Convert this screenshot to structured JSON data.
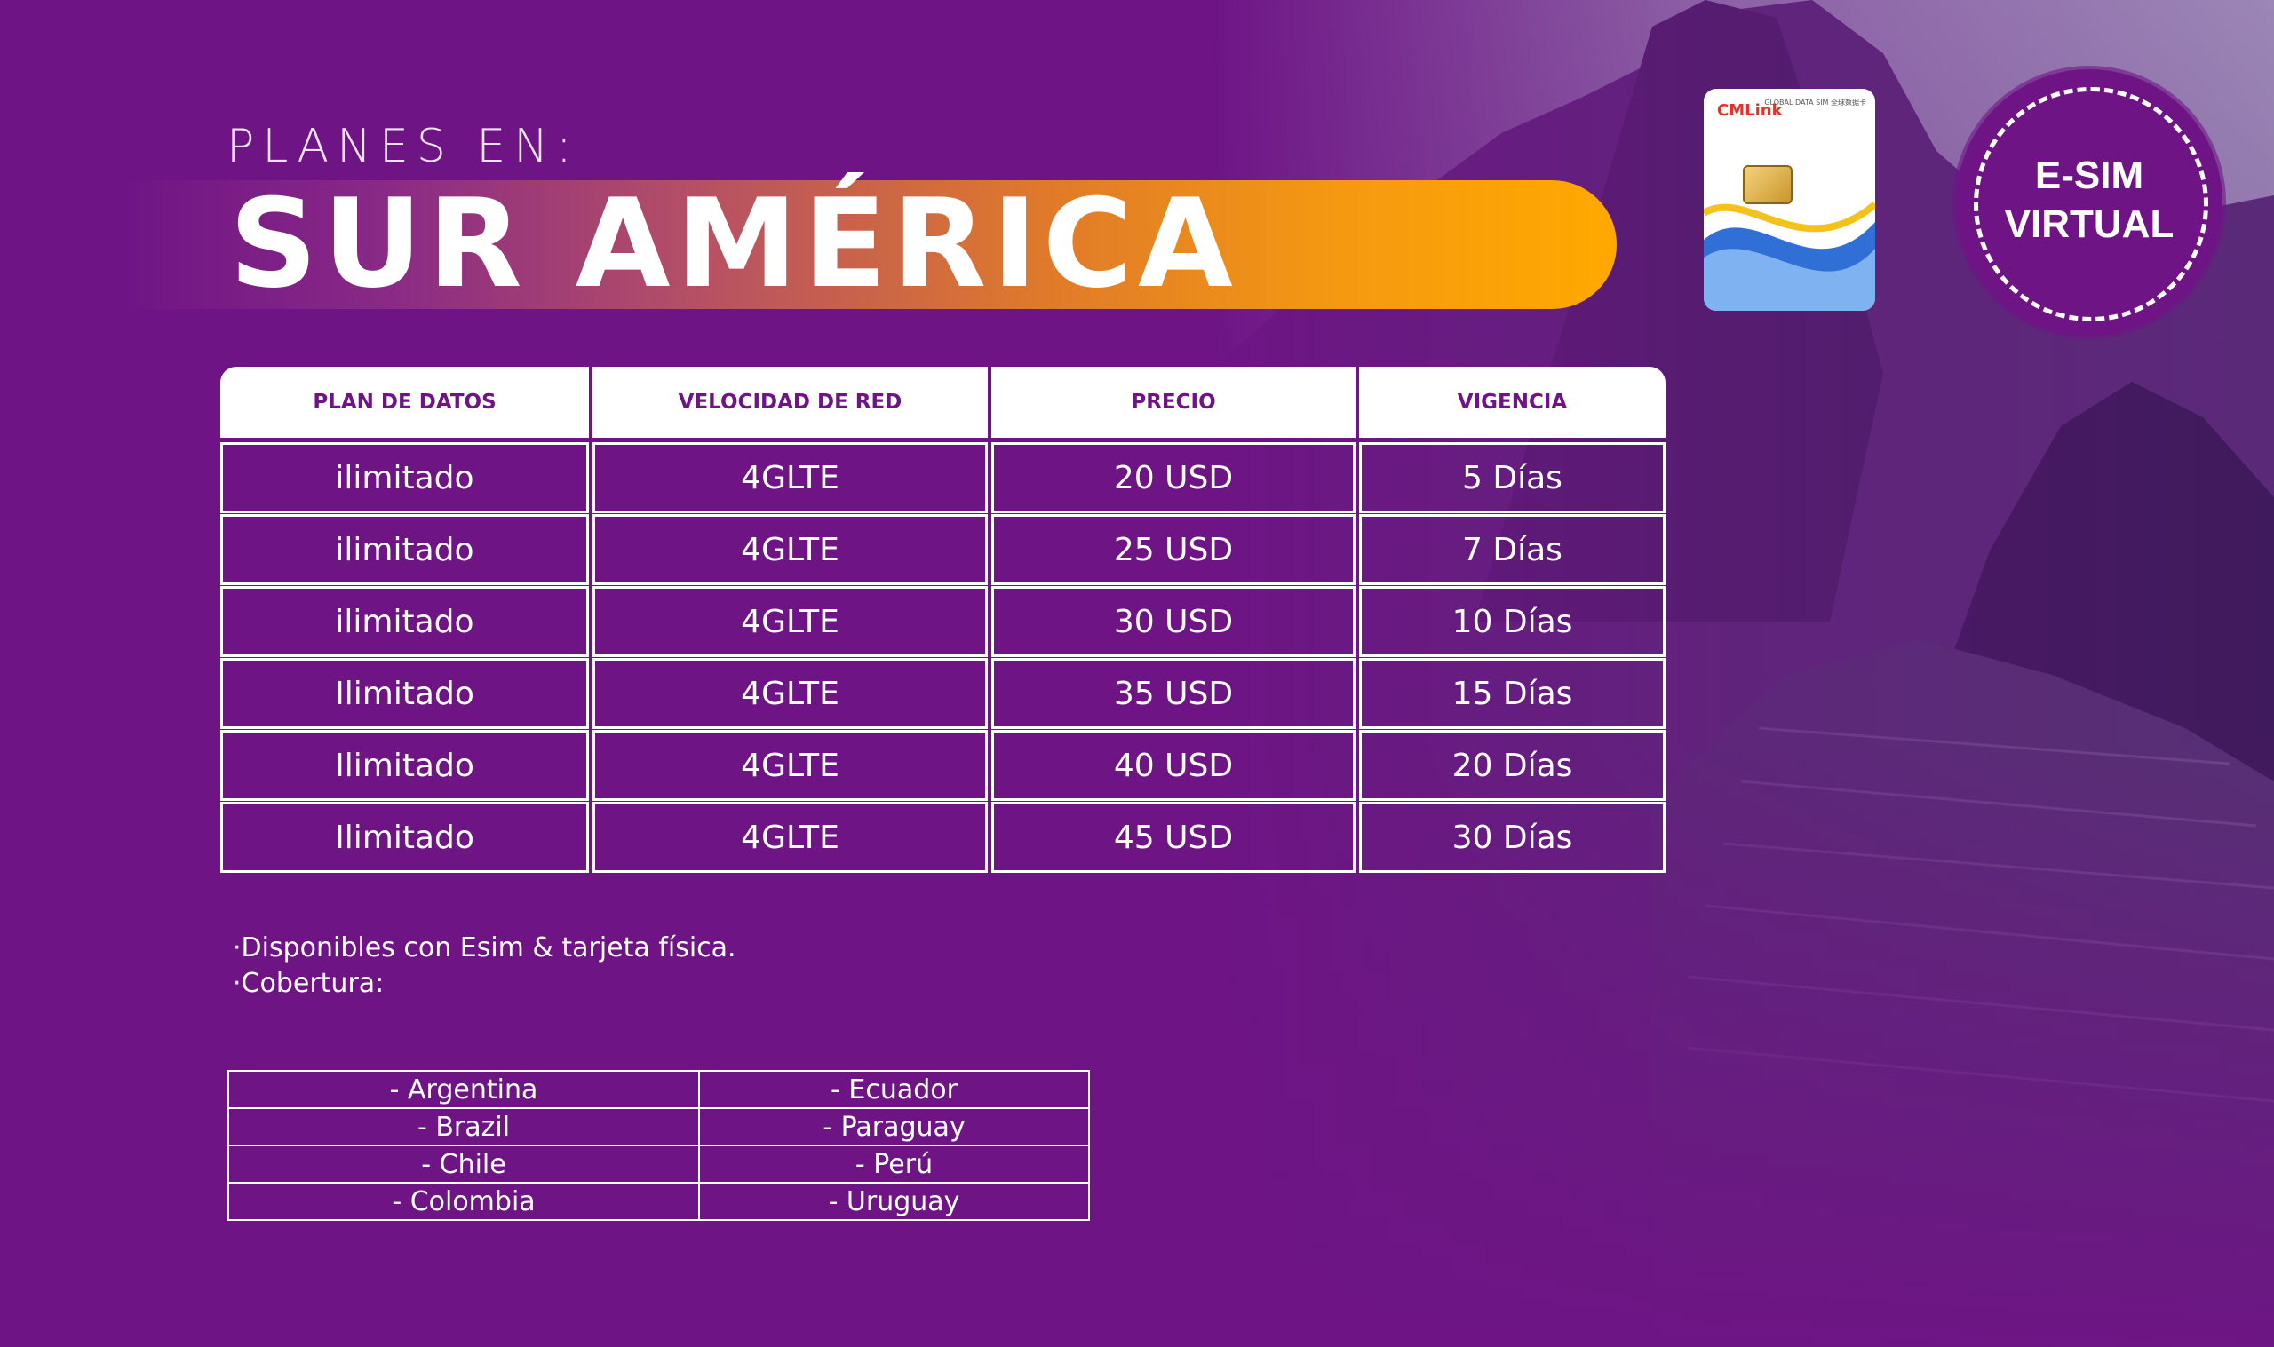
{
  "header": {
    "subtitle": "PLANES EN:",
    "title": "SUR AMÉRICA"
  },
  "sim_card": {
    "brand": "CMLink",
    "tagline": "GLOBAL DATA SIM 全球数据卡"
  },
  "badge": {
    "line1": "E-SIM",
    "line2": "VIRTUAL"
  },
  "plans_table": {
    "headers": [
      "PLAN DE DATOS",
      "VELOCIDAD DE RED",
      "PRECIO",
      "VIGENCIA"
    ],
    "rows": [
      [
        "ilimitado",
        "4GLTE",
        "20 USD",
        "5 Días"
      ],
      [
        "ilimitado",
        "4GLTE",
        "25 USD",
        "7 Días"
      ],
      [
        "ilimitado",
        "4GLTE",
        "30 USD",
        "10 Días"
      ],
      [
        "Ilimitado",
        "4GLTE",
        "35 USD",
        "15 Días"
      ],
      [
        "Ilimitado",
        "4GLTE",
        "40 USD",
        "20 Días"
      ],
      [
        "Ilimitado",
        "4GLTE",
        "45 USD",
        "30 Días"
      ]
    ]
  },
  "notes": {
    "line1": "·Disponibles con Esim & tarjeta física.",
    "line2": "·Cobertura:"
  },
  "coverage": {
    "rows": [
      [
        "- Argentina",
        "- Ecuador"
      ],
      [
        "- Brazil",
        "- Paraguay"
      ],
      [
        "- Chile",
        "- Perú"
      ],
      [
        "- Colombia",
        "- Uruguay"
      ]
    ]
  },
  "colors": {
    "background": "#6e1485",
    "accent_orange": "#ffa900",
    "white": "#ffffff"
  }
}
